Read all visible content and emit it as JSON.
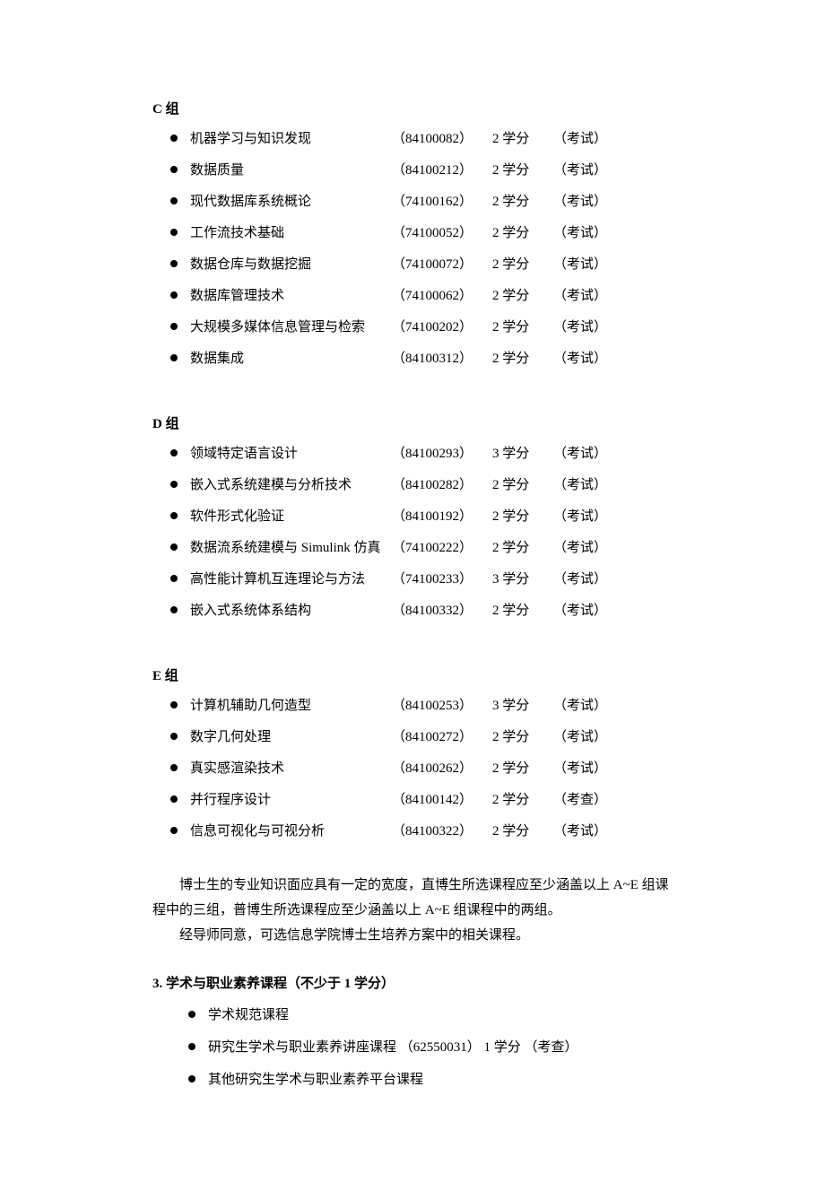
{
  "groups": [
    {
      "heading": "C 组",
      "headingClass": "group-c-heading",
      "courses": [
        {
          "name": "机器学习与知识发现",
          "code": "（84100082）",
          "credits": "2 学分",
          "assess": "（考试）"
        },
        {
          "name": "数据质量",
          "code": "（84100212）",
          "credits": "2 学分",
          "assess": "（考试）"
        },
        {
          "name": "现代数据库系统概论",
          "code": "（74100162）",
          "credits": "2 学分",
          "assess": "（考试）"
        },
        {
          "name": "工作流技术基础",
          "code": "（74100052）",
          "credits": "2 学分",
          "assess": "（考试）"
        },
        {
          "name": "数据仓库与数据挖掘",
          "code": "（74100072）",
          "credits": "2 学分",
          "assess": "（考试）"
        },
        {
          "name": "数据库管理技术",
          "code": "（74100062）",
          "credits": "2 学分",
          "assess": "（考试）"
        },
        {
          "name": "大规模多媒体信息管理与检索",
          "code": "（74100202）",
          "credits": "2 学分",
          "assess": "（考试）"
        },
        {
          "name": "数据集成",
          "code": "（84100312）",
          "credits": "2 学分",
          "assess": "（考试）"
        }
      ]
    },
    {
      "heading": "D 组",
      "headingClass": "group-d-heading",
      "courses": [
        {
          "name": "领域特定语言设计",
          "code": "（84100293）",
          "credits": "3 学分",
          "assess": "（考试）"
        },
        {
          "name": "嵌入式系统建模与分析技术",
          "code": "（84100282）",
          "credits": "2 学分",
          "assess": "（考试）"
        },
        {
          "name": "软件形式化验证",
          "code": "（84100192）",
          "credits": "2 学分",
          "assess": "（考试）"
        },
        {
          "name": "数据流系统建模与 Simulink 仿真",
          "code": "（74100222）",
          "credits": "2 学分",
          "assess": "（考试）"
        },
        {
          "name": "高性能计算机互连理论与方法",
          "code": "（74100233）",
          "credits": "3 学分",
          "assess": "（考试）"
        },
        {
          "name": "嵌入式系统体系结构",
          "code": "（84100332）",
          "credits": "2 学分",
          "assess": "（考试）"
        }
      ]
    },
    {
      "heading": "E 组",
      "headingClass": "group-e-heading",
      "courses": [
        {
          "name": "计算机辅助几何造型",
          "code": "（84100253）",
          "credits": "3 学分",
          "assess": "（考试）"
        },
        {
          "name": "数字几何处理",
          "code": "（84100272）",
          "credits": "2 学分",
          "assess": "（考试）"
        },
        {
          "name": "真实感渲染技术",
          "code": "（84100262）",
          "credits": "2 学分",
          "assess": "（考试）"
        },
        {
          "name": "并行程序设计",
          "code": "（84100142）",
          "credits": "2 学分",
          "assess": "（考查）"
        },
        {
          "name": "信息可视化与可视分析",
          "code": "（84100322）",
          "credits": "2 学分",
          "assess": "（考试）"
        }
      ]
    }
  ],
  "paragraphs": {
    "p1": "博士生的专业知识面应具有一定的宽度，直博生所选课程应至少涵盖以上 A~E 组课程中的三组，普博生所选课程应至少涵盖以上 A~E 组课程中的两组。",
    "p2": "经导师同意，可选信息学院博士生培养方案中的相关课程。"
  },
  "section3": {
    "heading": "3. 学术与职业素养课程（不少于 1 学分）",
    "items": [
      "学术规范课程",
      "研究生学术与职业素养讲座课程 （62550031） 1 学分   （考查）",
      "其他研究生学术与职业素养平台课程"
    ]
  }
}
